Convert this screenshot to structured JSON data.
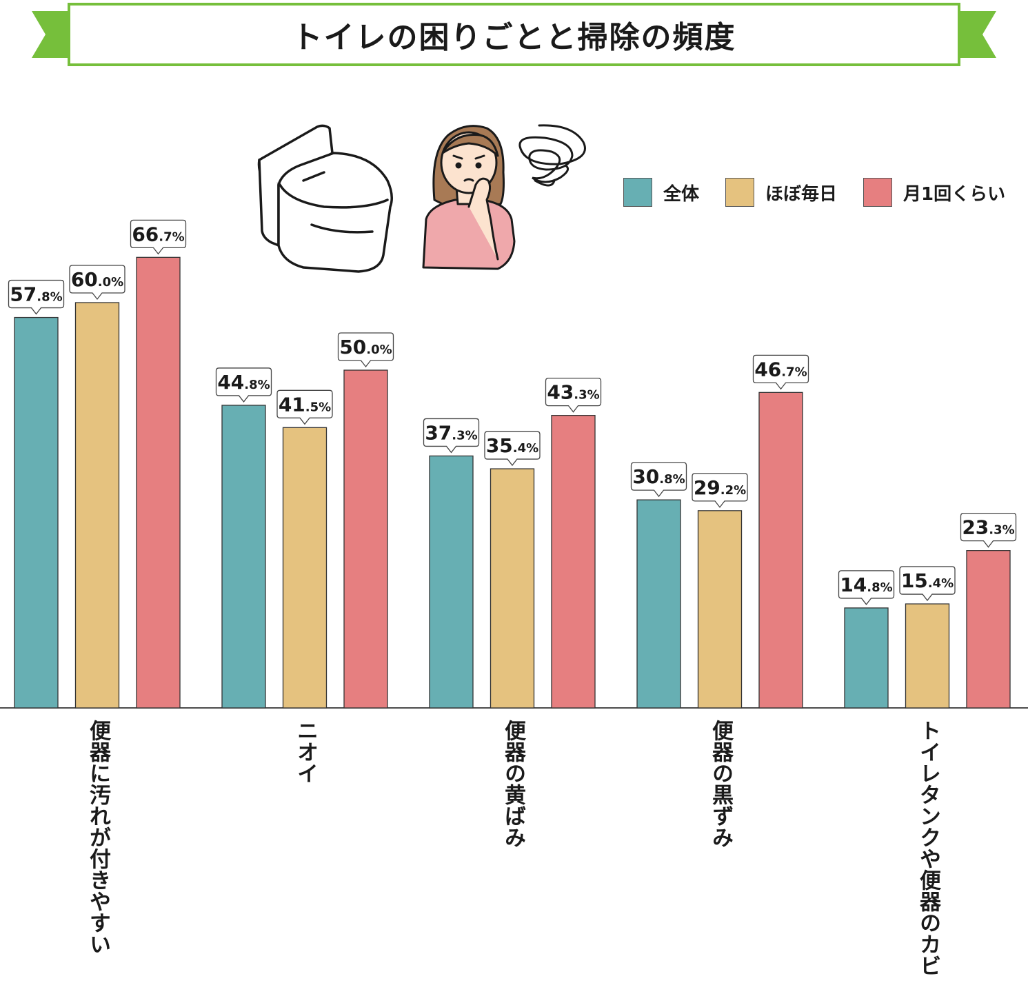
{
  "chart_data": {
    "type": "bar",
    "title": "トイレの困りごとと掃除の頻度",
    "categories": [
      "便器に汚れが付きやすい",
      "ニオイ",
      "便器の黄ばみ",
      "便器の黒ずみ",
      "トイレタンクや便器のカビ"
    ],
    "series": [
      {
        "name": "全体",
        "color": "#67afb3",
        "values": [
          57.8,
          44.8,
          37.3,
          30.8,
          14.8
        ],
        "labels": [
          "57.8%",
          "44.8%",
          "37.3%",
          "30.8%",
          "14.8%"
        ]
      },
      {
        "name": "ほぼ毎日",
        "color": "#e5c27f",
        "values": [
          60.0,
          41.5,
          35.4,
          29.2,
          15.4
        ],
        "labels": [
          "60.0%",
          "41.5%",
          "35.4%",
          "29.2%",
          "15.4%"
        ]
      },
      {
        "name": "月1回くらい",
        "color": "#e67f80",
        "values": [
          66.7,
          50.0,
          43.3,
          46.7,
          23.3
        ],
        "labels": [
          "66.7%",
          "50.0%",
          "43.3%",
          "46.7%",
          "23.3%"
        ]
      }
    ],
    "ylim": [
      0,
      100
    ],
    "grid": false,
    "legend_position": "top-right"
  },
  "colors": {
    "accent": "#76bf3b"
  },
  "illustrations": [
    "toilet-icon",
    "worried-woman-icon"
  ]
}
